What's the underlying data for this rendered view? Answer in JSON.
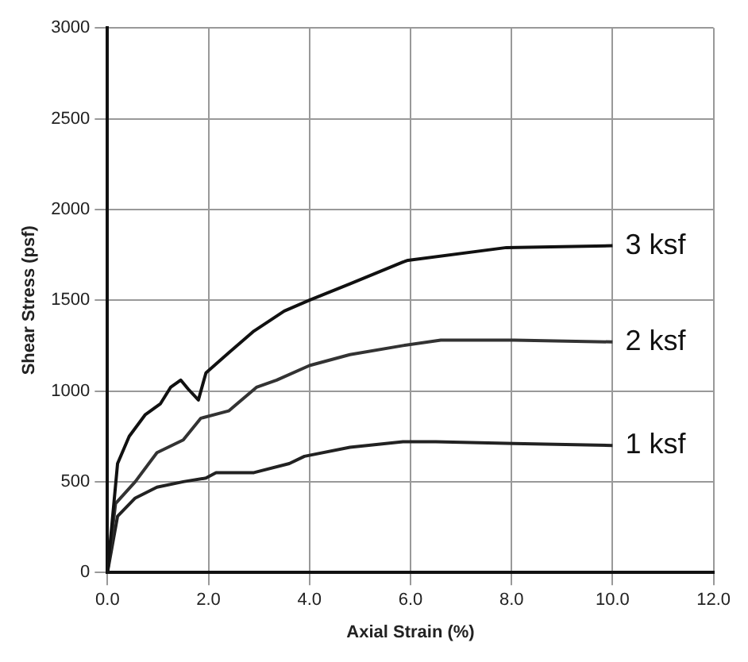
{
  "chart_data": {
    "type": "line",
    "xlabel": "Axial Strain (%)",
    "ylabel": "Shear Stress (psf)",
    "xlim": [
      0,
      12
    ],
    "ylim": [
      0,
      3000
    ],
    "xticks": [
      {
        "value": 0,
        "label": "0.0"
      },
      {
        "value": 2,
        "label": "2.0"
      },
      {
        "value": 4,
        "label": "4.0"
      },
      {
        "value": 6,
        "label": "6.0"
      },
      {
        "value": 8,
        "label": "8.0"
      },
      {
        "value": 10,
        "label": "10.0"
      },
      {
        "value": 12,
        "label": "12.0"
      }
    ],
    "yticks": [
      0,
      500,
      1000,
      1500,
      2000,
      2500,
      3000
    ],
    "grid": true,
    "legend": false,
    "marker": "none",
    "line_style": "solid",
    "series": [
      {
        "name": "3 ksf",
        "color": "#111111",
        "x": [
          0,
          0.2,
          0.43,
          0.75,
          1.05,
          1.25,
          1.45,
          1.6,
          1.8,
          1.95,
          2.4,
          2.9,
          3.5,
          4.0,
          4.8,
          5.85,
          5.95,
          7.9,
          10
        ],
        "values": [
          0,
          600,
          750,
          870,
          930,
          1020,
          1060,
          1010,
          950,
          1100,
          1210,
          1330,
          1440,
          1500,
          1590,
          1710,
          1720,
          1790,
          1800
        ]
      },
      {
        "name": "2 ksf",
        "color": "#333333",
        "x": [
          0,
          0.16,
          0.55,
          0.98,
          1.5,
          1.85,
          2.4,
          2.95,
          3.35,
          4.0,
          4.8,
          5.85,
          6.6,
          8.05,
          10
        ],
        "values": [
          0,
          380,
          500,
          660,
          730,
          850,
          890,
          1020,
          1060,
          1140,
          1200,
          1250,
          1280,
          1280,
          1270
        ]
      },
      {
        "name": "1 ksf",
        "color": "#222222",
        "x": [
          0,
          0.2,
          0.55,
          0.98,
          1.5,
          1.95,
          2.15,
          2.9,
          3.6,
          3.9,
          4.8,
          5.85,
          6.5,
          8.05,
          10
        ],
        "values": [
          0,
          310,
          410,
          470,
          500,
          520,
          550,
          550,
          600,
          640,
          690,
          720,
          720,
          710,
          700
        ]
      }
    ]
  }
}
